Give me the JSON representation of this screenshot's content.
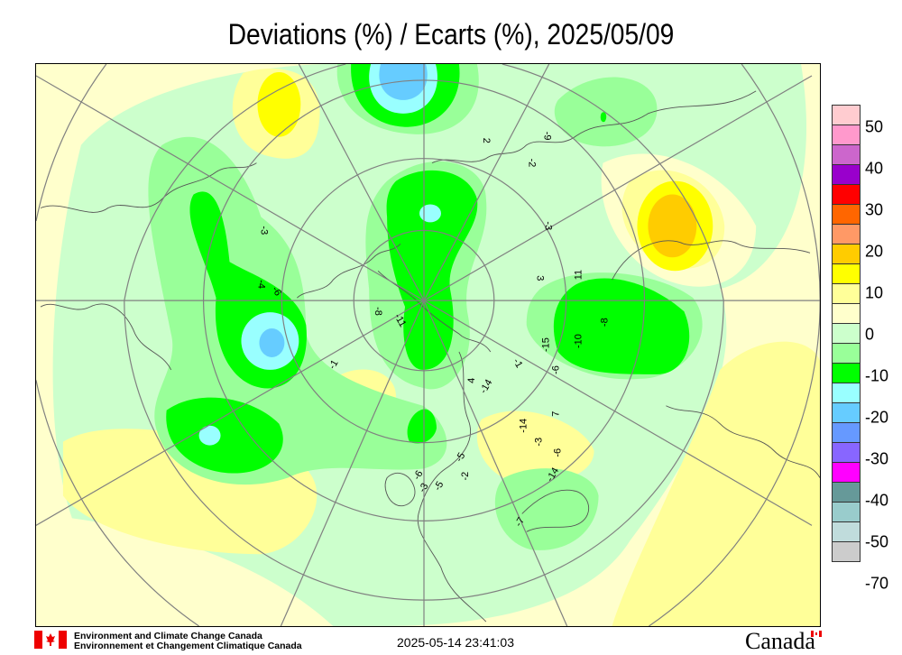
{
  "title": "Deviations (%) / Ecarts (%), 2025/05/09",
  "legend": {
    "colors": [
      "#ffccd0",
      "#ff99cc",
      "#cc66cc",
      "#9900cc",
      "#ff0000",
      "#ff6600",
      "#ff9966",
      "#ffcc00",
      "#ffff00",
      "#ffff99",
      "#ffffcc",
      "#ccffcc",
      "#99ff99",
      "#00ff00",
      "#99ffff",
      "#66ccff",
      "#6699ff",
      "#8866ff",
      "#ff00ff",
      "#669999",
      "#99cccc",
      "#c0dcdc",
      "#cccccc"
    ],
    "labels": [
      "50",
      "40",
      "30",
      "20",
      "10",
      "0",
      "-10",
      "-20",
      "-30",
      "-40",
      "-50",
      "-70"
    ]
  },
  "stations": [
    "2",
    "-9",
    "-2",
    "-3",
    "11",
    "3",
    "-8",
    "-11",
    "-1",
    "-4",
    "-6",
    "-3",
    "-15",
    "-10",
    "-8",
    "-6",
    "-1",
    "4",
    "-14",
    "7",
    "-14",
    "-3",
    "-6",
    "-5",
    "-2",
    "-6",
    "-3",
    "-5",
    "-14",
    "-7"
  ],
  "footer": {
    "org_en": "Environment and Climate Change Canada",
    "org_fr": "Environnement et Changement Climatique Canada",
    "timestamp": "2025-05-14 23:41:03",
    "wordmark": "Canada"
  }
}
